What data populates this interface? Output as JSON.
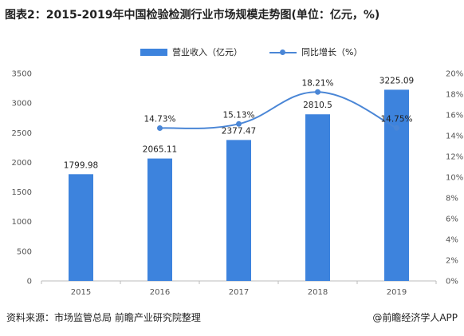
{
  "title": "图表2：2015-2019年中国检验检测行业市场规模走势图(单位：亿元，%)",
  "footer": {
    "source": "资料来源：市场监管总局 前瞻产业研究院整理",
    "brand": "@前瞻经济学人APP"
  },
  "colors": {
    "bar": "#3d83dd",
    "line": "#4a86d6",
    "axis": "#bbbbbb"
  },
  "chart_data": {
    "type": "bar+line",
    "categories": [
      "2015",
      "2016",
      "2017",
      "2018",
      "2019"
    ],
    "series": [
      {
        "name": "营业收入（亿元）",
        "type": "bar",
        "axis": "left",
        "values": [
          1799.98,
          2065.11,
          2377.47,
          2810.5,
          3225.09
        ],
        "labels": [
          "1799.98",
          "2065.11",
          "2377.47",
          "2810.5",
          "3225.09"
        ]
      },
      {
        "name": "同比增长（%）",
        "type": "line",
        "axis": "right",
        "values": [
          null,
          14.73,
          15.13,
          18.21,
          14.75
        ],
        "labels": [
          "",
          "14.73%",
          "15.13%",
          "18.21%",
          "14.75%"
        ]
      }
    ],
    "y_left": {
      "min": 0,
      "max": 3500,
      "step": 500
    },
    "y_right": {
      "min": 0,
      "max": 20,
      "step": 2,
      "suffix": "%"
    },
    "legend_position": "top"
  }
}
